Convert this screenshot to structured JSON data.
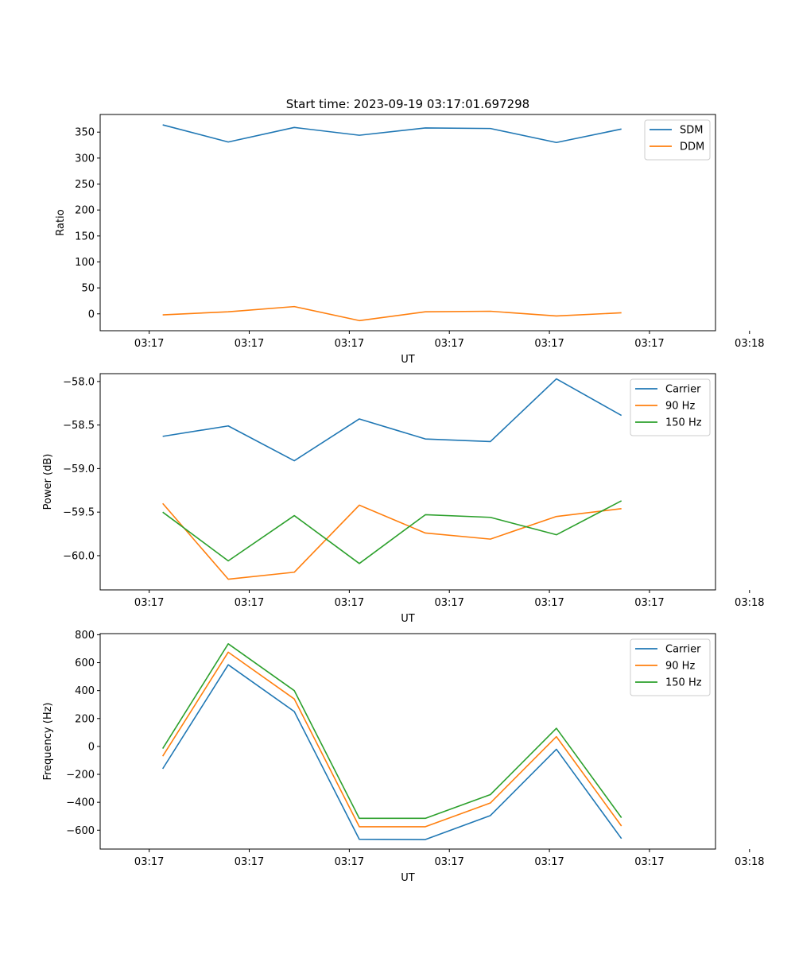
{
  "figure": {
    "title": "Start time: 2023-09-19 03:17:01.697298"
  },
  "colors": {
    "blue": "#1f77b4",
    "orange": "#ff7f0e",
    "green": "#2ca02c",
    "axis": "#000000",
    "legend_edge": "#cccccc"
  },
  "chart_data": [
    {
      "type": "line",
      "title": "Start time: 2023-09-19 03:17:01.697298",
      "xlabel": "UT",
      "ylabel": "Ratio",
      "xlim": [
        -0.49,
        5.66
      ],
      "ylim": [
        -32.5,
        384
      ],
      "x": [
        0.135,
        0.79,
        1.45,
        2.1,
        2.76,
        3.41,
        4.07,
        4.72
      ],
      "xticks": [
        0,
        1,
        2,
        3,
        4,
        5,
        6
      ],
      "xtick_labels": [
        "03:17",
        "03:17",
        "03:17",
        "03:17",
        "03:17",
        "03:17",
        "03:18"
      ],
      "yticks": [
        0,
        50,
        100,
        150,
        200,
        250,
        300,
        350
      ],
      "ytick_labels": [
        "0",
        "50",
        "100",
        "150",
        "200",
        "250",
        "300",
        "350"
      ],
      "legend_position": "top-right",
      "series": [
        {
          "name": "SDM",
          "color": "#1f77b4",
          "values": [
            364,
            331,
            359,
            344,
            358,
            357,
            330,
            356
          ]
        },
        {
          "name": "DDM",
          "color": "#ff7f0e",
          "values": [
            -2,
            4,
            14,
            -13,
            4,
            5,
            -4,
            2
          ]
        }
      ]
    },
    {
      "type": "line",
      "title": "",
      "xlabel": "UT",
      "ylabel": "Power (dB)",
      "xlim": [
        -0.49,
        5.66
      ],
      "ylim": [
        -60.393,
        -57.91
      ],
      "x": [
        0.135,
        0.79,
        1.45,
        2.1,
        2.76,
        3.41,
        4.07,
        4.72
      ],
      "xticks": [
        0,
        1,
        2,
        3,
        4,
        5,
        6
      ],
      "xtick_labels": [
        "03:17",
        "03:17",
        "03:17",
        "03:17",
        "03:17",
        "03:17",
        "03:18"
      ],
      "yticks": [
        -60.0,
        -59.5,
        -59.0,
        -58.5,
        -58.0
      ],
      "ytick_labels": [
        "−60.0",
        "−59.5",
        "−59.0",
        "−58.5",
        "−58.0"
      ],
      "legend_position": "top-right",
      "series": [
        {
          "name": "Carrier",
          "color": "#1f77b4",
          "values": [
            -58.63,
            -58.51,
            -58.91,
            -58.43,
            -58.66,
            -58.69,
            -57.97,
            -58.39
          ]
        },
        {
          "name": "90 Hz",
          "color": "#ff7f0e",
          "values": [
            -59.4,
            -60.27,
            -60.19,
            -59.42,
            -59.74,
            -59.81,
            -59.55,
            -59.46
          ]
        },
        {
          "name": "150 Hz",
          "color": "#2ca02c",
          "values": [
            -59.5,
            -60.06,
            -59.54,
            -60.09,
            -59.53,
            -59.56,
            -59.76,
            -59.37
          ]
        }
      ]
    },
    {
      "type": "line",
      "title": "",
      "xlabel": "UT",
      "ylabel": "Frequency (Hz)",
      "xlim": [
        -0.49,
        5.66
      ],
      "ylim": [
        -735,
        808
      ],
      "x": [
        0.135,
        0.79,
        1.45,
        2.1,
        2.76,
        3.41,
        4.07,
        4.72
      ],
      "xticks": [
        0,
        1,
        2,
        3,
        4,
        5,
        6
      ],
      "xtick_labels": [
        "03:17",
        "03:17",
        "03:17",
        "03:17",
        "03:17",
        "03:17",
        "03:18"
      ],
      "yticks": [
        -600,
        -400,
        -200,
        0,
        200,
        400,
        600,
        800
      ],
      "ytick_labels": [
        "−600",
        "−400",
        "−200",
        "0",
        "200",
        "400",
        "600",
        "800"
      ],
      "legend_position": "top-right",
      "series": [
        {
          "name": "Carrier",
          "color": "#1f77b4",
          "values": [
            -160,
            585,
            250,
            -665,
            -667,
            -495,
            -20,
            -660
          ]
        },
        {
          "name": "90 Hz",
          "color": "#ff7f0e",
          "values": [
            -70,
            675,
            340,
            -575,
            -575,
            -405,
            70,
            -570
          ]
        },
        {
          "name": "150 Hz",
          "color": "#2ca02c",
          "values": [
            -15,
            735,
            400,
            -515,
            -515,
            -345,
            130,
            -510
          ]
        }
      ]
    }
  ]
}
